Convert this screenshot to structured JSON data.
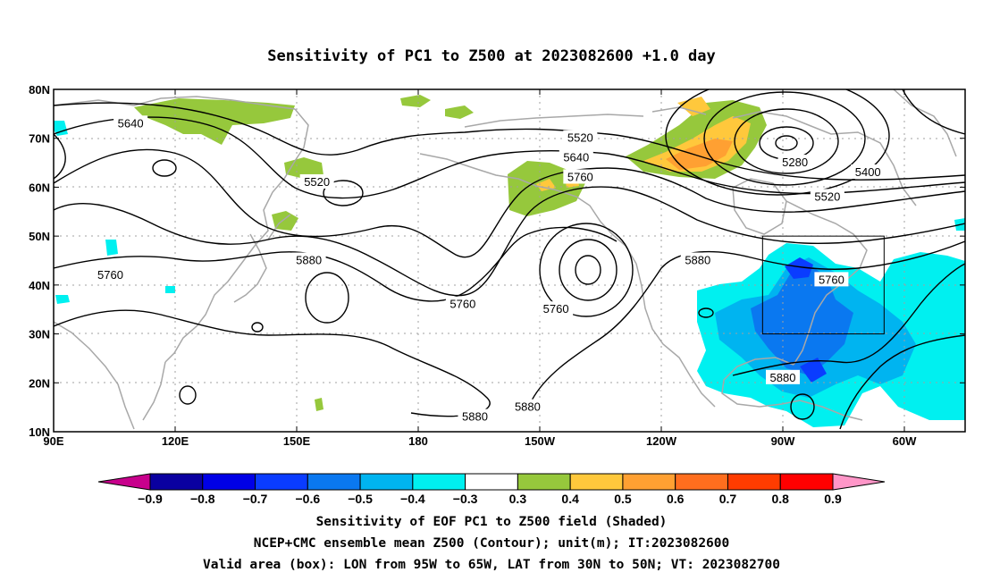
{
  "title": "Sensitivity of PC1 to Z500 at 2023082600 +1.0 day",
  "map": {
    "lon_ticks": [
      "90E",
      "120E",
      "150E",
      "180",
      "150W",
      "120W",
      "90W",
      "60W"
    ],
    "lon_tick_values": [
      90,
      120,
      150,
      180,
      210,
      240,
      270,
      300
    ],
    "lat_ticks": [
      "80N",
      "70N",
      "60N",
      "50N",
      "40N",
      "30N",
      "20N",
      "10N"
    ],
    "lat_tick_values": [
      80,
      70,
      60,
      50,
      40,
      30,
      20,
      10
    ],
    "lon_range": [
      90,
      315
    ],
    "lat_range": [
      10,
      80
    ],
    "grid": true,
    "valid_box": {
      "lon": [
        265,
        295
      ],
      "lat": [
        30,
        50
      ]
    },
    "contour_labels": [
      {
        "text": "5640",
        "lon": 109,
        "lat": 73
      },
      {
        "text": "5520",
        "lon": 155,
        "lat": 61
      },
      {
        "text": "5520",
        "lon": 220,
        "lat": 70
      },
      {
        "text": "5640",
        "lon": 219,
        "lat": 66
      },
      {
        "text": "5760",
        "lon": 220,
        "lat": 62
      },
      {
        "text": "5280",
        "lon": 273,
        "lat": 65
      },
      {
        "text": "5400",
        "lon": 291,
        "lat": 63
      },
      {
        "text": "5520",
        "lon": 281,
        "lat": 58
      },
      {
        "text": "5760",
        "lon": 104,
        "lat": 42
      },
      {
        "text": "5880",
        "lon": 153,
        "lat": 45
      },
      {
        "text": "5760",
        "lon": 191,
        "lat": 36
      },
      {
        "text": "5760",
        "lon": 214,
        "lat": 35
      },
      {
        "text": "5880",
        "lon": 249,
        "lat": 45
      },
      {
        "text": "5760",
        "lon": 282,
        "lat": 41
      },
      {
        "text": "5880",
        "lon": 270,
        "lat": 21
      },
      {
        "text": "5880",
        "lon": 194,
        "lat": 13
      },
      {
        "text": "5880",
        "lon": 207,
        "lat": 15
      }
    ]
  },
  "colorbar": {
    "labels": [
      "−0.9",
      "−0.8",
      "−0.7",
      "−0.6",
      "−0.5",
      "−0.4",
      "−0.3",
      "0.3",
      "0.4",
      "0.5",
      "0.6",
      "0.7",
      "0.8",
      "0.9"
    ],
    "colors": [
      "#0a00a0",
      "#0000e6",
      "#0a3cff",
      "#0a78f0",
      "#00b4f0",
      "#00f0f0",
      "#ffffff",
      "#96c83c",
      "#ffc83c",
      "#ffa032",
      "#ff6e1e",
      "#ff3c00",
      "#ff0000"
    ],
    "low_end_color": "#c8008c",
    "high_end_color": "#ff96c8"
  },
  "caption": {
    "line1": "Sensitivity of EOF PC1 to Z500 field (Shaded)",
    "line2": "NCEP+CMC ensemble mean Z500 (Contour); unit(m); IT:2023082600",
    "line3": "Valid area (box): LON from 95W to 65W, LAT from 30N to 50N; VT: 2023082700"
  }
}
